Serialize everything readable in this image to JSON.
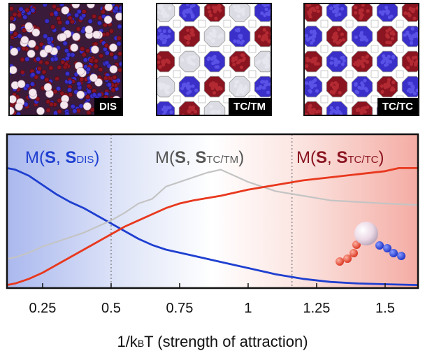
{
  "panels": [
    {
      "label": "DIS"
    },
    {
      "label": "TC/TM"
    },
    {
      "label": "TC/TC"
    }
  ],
  "colors": {
    "blue": "#1f3fd0",
    "gray": "#c4c4c4",
    "red": "#e8381e",
    "blue_particle": "#3a2fc9",
    "red_particle": "#8a1420",
    "white_particle": "#f4e8ee"
  },
  "legend": {
    "dis": {
      "prefix": "M(",
      "s1": "S",
      "sep": ", ",
      "s2": "S",
      "sub": "DIS",
      "suffix": ")"
    },
    "tctm": {
      "prefix": "M(",
      "s1": "S",
      "sep": ", ",
      "s2": "S",
      "sub": "TC/TM",
      "suffix": ")"
    },
    "tctc": {
      "prefix": "M(",
      "s1": "S",
      "sep": ", ",
      "s2": "S",
      "sub": "TC/TC",
      "suffix": ")"
    }
  },
  "chart_data": {
    "type": "line",
    "xlabel": "1/k",
    "xlabel_sub": "B",
    "xlabel_rest": "T (strength of attraction)",
    "xlim": [
      0.12,
      1.62
    ],
    "ylim": [
      0,
      1
    ],
    "xticks": [
      0.25,
      0.5,
      0.75,
      1,
      1.25,
      1.5
    ],
    "xtick_labels": [
      "0.25",
      "0.5",
      "0.75",
      "1",
      "1.25",
      "1.5"
    ],
    "boundaries": [
      0.5,
      1.16
    ],
    "grid": false,
    "series": [
      {
        "key": "dis",
        "x": [
          0.12,
          0.15,
          0.2,
          0.25,
          0.3,
          0.35,
          0.4,
          0.45,
          0.5,
          0.55,
          0.6,
          0.65,
          0.7,
          0.75,
          0.8,
          0.9,
          1.0,
          1.1,
          1.2,
          1.3,
          1.4,
          1.5,
          1.62
        ],
        "y": [
          0.78,
          0.77,
          0.73,
          0.67,
          0.61,
          0.56,
          0.52,
          0.47,
          0.42,
          0.37,
          0.32,
          0.28,
          0.25,
          0.23,
          0.21,
          0.17,
          0.13,
          0.09,
          0.06,
          0.04,
          0.03,
          0.025,
          0.02
        ]
      },
      {
        "key": "tctm",
        "x": [
          0.12,
          0.15,
          0.2,
          0.25,
          0.3,
          0.35,
          0.4,
          0.45,
          0.5,
          0.55,
          0.6,
          0.65,
          0.7,
          0.75,
          0.8,
          0.85,
          0.9,
          0.95,
          1.0,
          1.05,
          1.1,
          1.2,
          1.3,
          1.4,
          1.5,
          1.62
        ],
        "y": [
          0.19,
          0.2,
          0.23,
          0.27,
          0.3,
          0.33,
          0.36,
          0.4,
          0.44,
          0.49,
          0.55,
          0.58,
          0.66,
          0.69,
          0.72,
          0.75,
          0.77,
          0.73,
          0.69,
          0.66,
          0.63,
          0.6,
          0.57,
          0.56,
          0.55,
          0.54
        ]
      },
      {
        "key": "tctc",
        "x": [
          0.12,
          0.15,
          0.2,
          0.25,
          0.3,
          0.35,
          0.4,
          0.45,
          0.5,
          0.55,
          0.6,
          0.65,
          0.7,
          0.75,
          0.8,
          0.9,
          1.0,
          1.1,
          1.2,
          1.3,
          1.4,
          1.5,
          1.55,
          1.62
        ],
        "y": [
          0.02,
          0.03,
          0.06,
          0.1,
          0.15,
          0.2,
          0.25,
          0.3,
          0.35,
          0.4,
          0.44,
          0.48,
          0.52,
          0.55,
          0.57,
          0.6,
          0.64,
          0.67,
          0.7,
          0.72,
          0.74,
          0.76,
          0.78,
          0.78
        ]
      }
    ]
  }
}
